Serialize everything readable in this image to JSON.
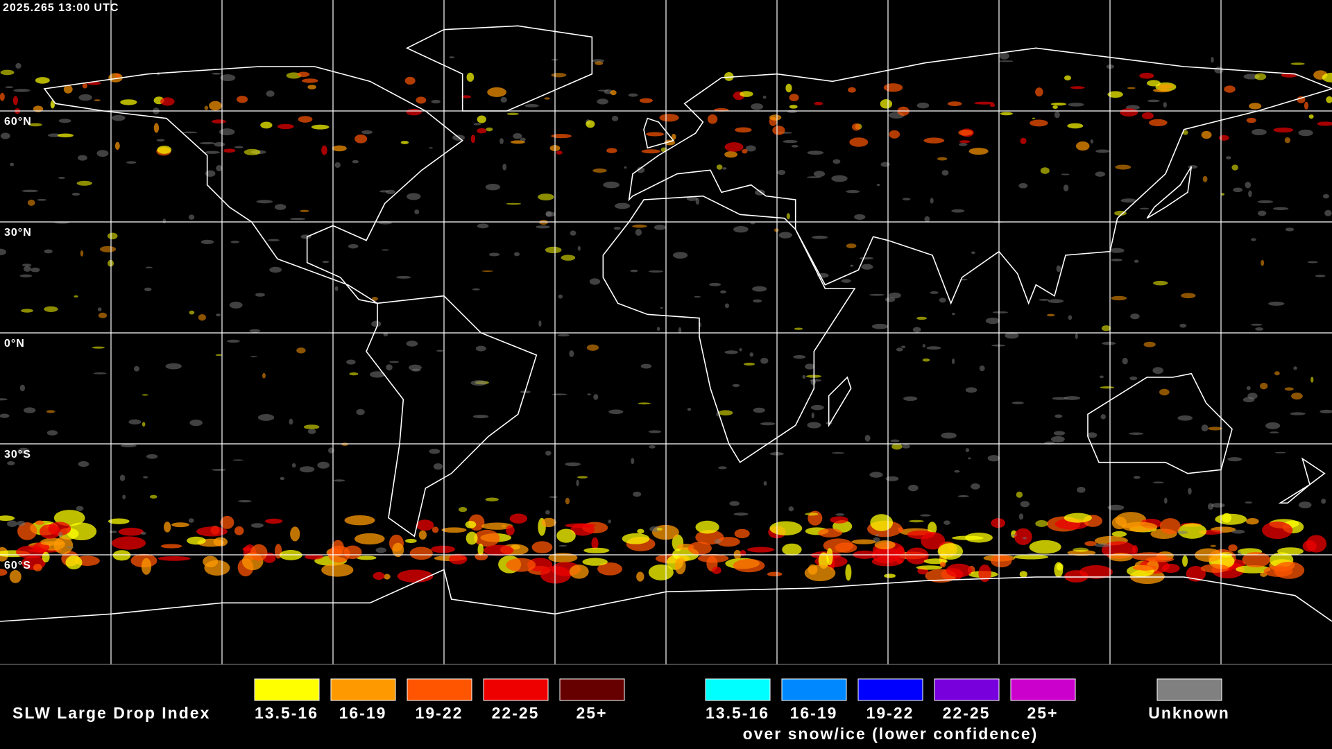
{
  "timestamp": "2025.265 13:00 UTC",
  "latitude_labels": [
    "60°N",
    "30°N",
    "0°N",
    "30°S",
    "60°S"
  ],
  "legend": {
    "title": "SLW Large Drop Index",
    "groups": [
      {
        "items": [
          {
            "label": "13.5-16",
            "color": "#ffff00"
          },
          {
            "label": "16-19",
            "color": "#ff9900"
          },
          {
            "label": "19-22",
            "color": "#ff5500"
          },
          {
            "label": "22-25",
            "color": "#ee0000"
          },
          {
            "label": "25+",
            "color": "#660000"
          }
        ]
      },
      {
        "items": [
          {
            "label": "13.5-16",
            "color": "#00ffff"
          },
          {
            "label": "16-19",
            "color": "#0088ff"
          },
          {
            "label": "19-22",
            "color": "#0000ff"
          },
          {
            "label": "22-25",
            "color": "#7700dd"
          },
          {
            "label": "25+",
            "color": "#cc00cc"
          }
        ],
        "caption": "over snow/ice (lower confidence)"
      },
      {
        "items": [
          {
            "label": "Unknown",
            "color": "#808080"
          }
        ]
      }
    ]
  }
}
